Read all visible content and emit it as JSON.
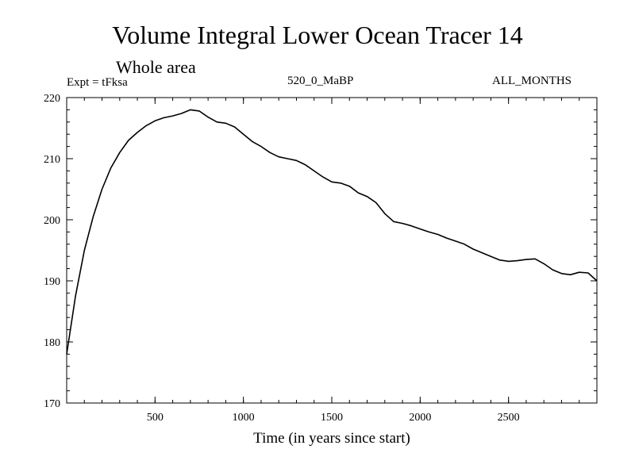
{
  "chart_data": {
    "type": "line",
    "title": "Volume Integral Lower Ocean Tracer 14",
    "subtitle": "Whole area",
    "expt_label": "Expt = tFksa",
    "experiment": "520_0_MaBP",
    "months": "ALL_MONTHS",
    "xlabel": "Time (in years since start)",
    "ylabel": "",
    "xlim": [
      0,
      3000
    ],
    "ylim": [
      170,
      220
    ],
    "xticks": [
      500,
      1000,
      1500,
      2000,
      2500
    ],
    "yticks": [
      170,
      180,
      190,
      200,
      210,
      220
    ],
    "grid": false,
    "series": [
      {
        "name": "Tracer 14",
        "x": [
          0,
          50,
          100,
          150,
          200,
          250,
          300,
          350,
          400,
          450,
          500,
          550,
          600,
          650,
          700,
          750,
          800,
          850,
          900,
          950,
          1000,
          1050,
          1100,
          1150,
          1200,
          1250,
          1300,
          1350,
          1400,
          1450,
          1500,
          1550,
          1600,
          1650,
          1700,
          1750,
          1800,
          1850,
          1900,
          1950,
          2000,
          2050,
          2100,
          2150,
          2200,
          2250,
          2300,
          2350,
          2400,
          2450,
          2500,
          2550,
          2600,
          2650,
          2700,
          2750,
          2800,
          2850,
          2900,
          2950,
          3000
        ],
        "values": [
          178.0,
          187.5,
          195.0,
          200.5,
          205.0,
          208.5,
          211.0,
          213.0,
          214.3,
          215.4,
          216.2,
          216.7,
          217.0,
          217.4,
          218.0,
          217.8,
          216.8,
          216.0,
          215.8,
          215.2,
          214.0,
          212.8,
          212.0,
          211.0,
          210.3,
          210.0,
          209.7,
          209.0,
          208.0,
          207.0,
          206.2,
          206.0,
          205.5,
          204.4,
          203.8,
          202.8,
          201.0,
          199.7,
          199.4,
          199.0,
          198.5,
          198.0,
          197.6,
          197.0,
          196.5,
          196.0,
          195.2,
          194.6,
          194.0,
          193.4,
          193.2,
          193.3,
          193.5,
          193.6,
          192.8,
          191.8,
          191.2,
          191.0,
          191.4,
          191.3,
          190.0
        ]
      }
    ]
  }
}
